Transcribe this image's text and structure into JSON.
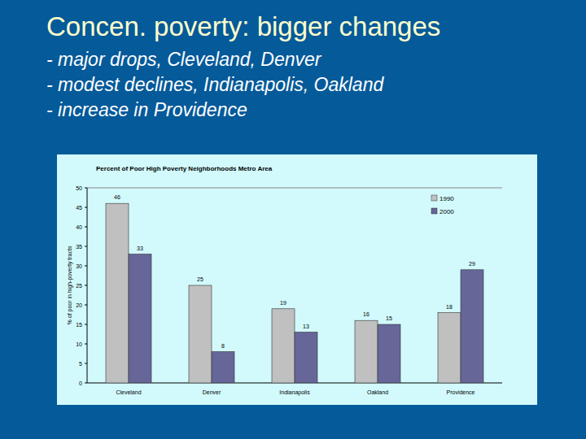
{
  "slide": {
    "title": "Concen. poverty: bigger changes",
    "bullets": [
      "- major drops, Cleveland, Denver",
      "- modest declines, Indianapolis, Oakland",
      "- increase in Providence"
    ]
  },
  "chart_data": {
    "type": "bar",
    "title": "Percent of Poor   High Poverty Neighborhoods   Metro Area",
    "y_label": "% of poor in high-poverty tracts",
    "categories": [
      "Cleveland",
      "Denver",
      "Indianapolis",
      "Oakland",
      "Providence"
    ],
    "series": [
      {
        "name": "1990",
        "color": "#c0c0c0",
        "values": [
          46,
          25,
          19,
          16,
          18
        ]
      },
      {
        "name": "2000",
        "color": "#666699",
        "values": [
          33,
          8,
          13,
          15,
          29
        ]
      }
    ],
    "ylim": [
      0,
      50
    ],
    "yticks": [
      0,
      5,
      10,
      15,
      20,
      25,
      30,
      35,
      40,
      45,
      50
    ],
    "grid": false,
    "legend": "upper right",
    "data_labels": true
  }
}
